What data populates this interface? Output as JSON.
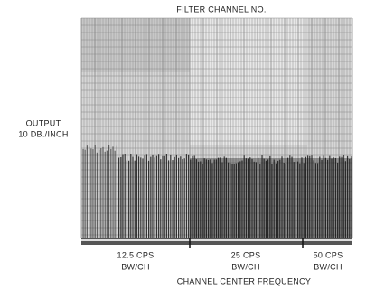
{
  "figure": {
    "title": "FILTER CHANNEL NO.",
    "y_label": {
      "line1": "OUTPUT",
      "line2": "10 DB./INCH"
    },
    "sections": [
      {
        "line1": "12.5 CPS",
        "line2": "BW/CH"
      },
      {
        "line1": "25 CPS",
        "line2": "BW/CH"
      },
      {
        "line1": "50 CPS",
        "line2": "BW/CH"
      }
    ],
    "x_label": "CHANNEL CENTER FREQUENCY"
  }
}
